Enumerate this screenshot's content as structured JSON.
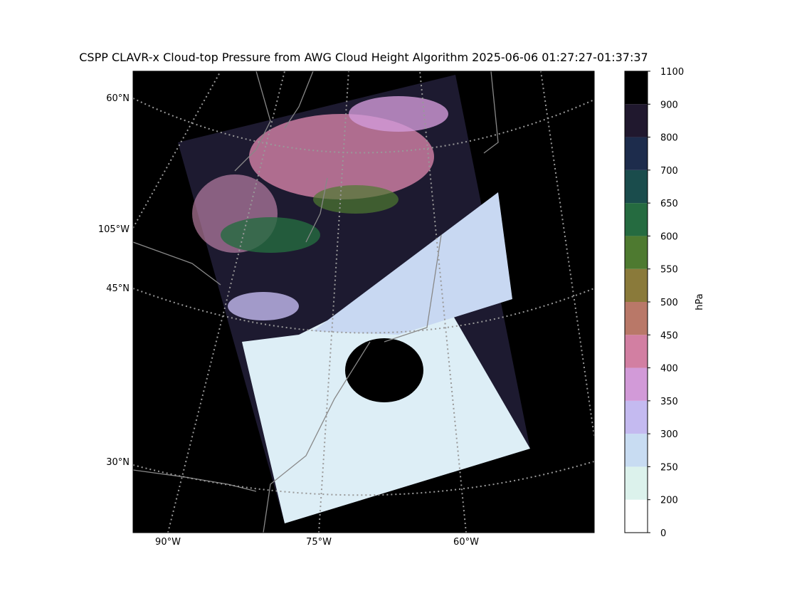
{
  "map": {
    "title": "CSPP CLAVR-x Cloud-top Pressure from AWG Cloud Height Algorithm 2025-06-06 01:27:27-01:37:37",
    "lat_labels": [
      "60°N",
      "105°W",
      "45°N",
      "30°N"
    ],
    "lon_labels": [
      "90°W",
      "75°W",
      "60°W"
    ]
  },
  "colorbar": {
    "label": "hPa",
    "ticks": [
      0,
      200,
      250,
      300,
      350,
      400,
      450,
      500,
      550,
      600,
      650,
      700,
      800,
      900,
      1100
    ],
    "colors": [
      "#ffffff",
      "#dcf2ec",
      "#c8dcf2",
      "#c4baf0",
      "#d29ad8",
      "#d27fa2",
      "#b97868",
      "#8a7a3a",
      "#4e7a30",
      "#256b40",
      "#1a4c4c",
      "#1d2c4c",
      "#20182e",
      "#000000"
    ]
  }
}
